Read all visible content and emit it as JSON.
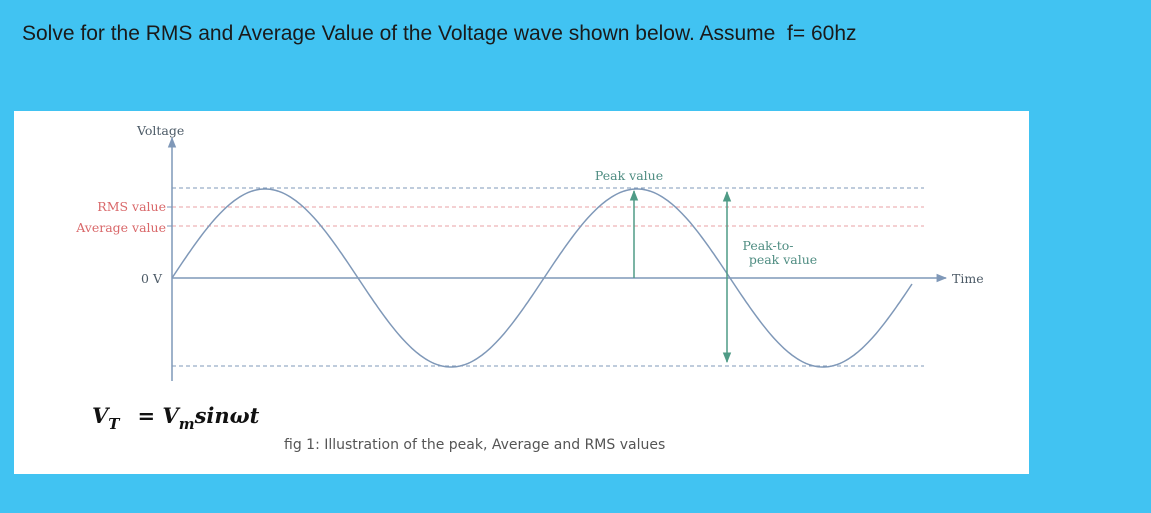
{
  "question": "Solve for the RMS and Average Value of the Voltage wave shown below. Assume  f= 60hz",
  "figure": {
    "y_axis_label": "Voltage",
    "x_axis_label": "Time",
    "zero_label": "0 V",
    "rms_label": "RMS value",
    "average_label": "Average value",
    "peak_label": "Peak value",
    "peak_to_peak_label_line1": "Peak-to-",
    "peak_to_peak_label_line2": "peak value",
    "caption": "fig 1: Illustration of the peak, Average and RMS values",
    "colors": {
      "wave": "#7f98b8",
      "axis": "#7f98b8",
      "label_red": "#d9686a",
      "label_grey": "#4c5a66",
      "label_green": "#4f8d82",
      "peak_arrow": "#4f9b86",
      "rms_line": "#e8a1a5",
      "peak_dash": "#7f98b8"
    }
  },
  "formula": {
    "lhs": "V",
    "lhs_sub": "T",
    "eq": "=",
    "rhs": "V",
    "rhs_sub": "m",
    "rhs_tail": "sinωt"
  }
}
